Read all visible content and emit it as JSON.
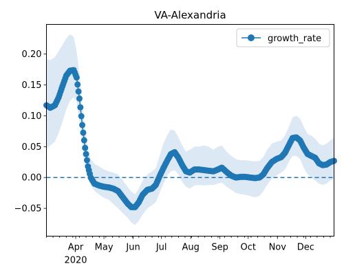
{
  "chart_data": {
    "type": "line",
    "title": "VA-Alexandria",
    "xlabel": "",
    "ylabel": "",
    "x_start": "2020-03-01",
    "x_end": "2020-12-31",
    "xlim": [
      "2020-03-01",
      "2020-12-31"
    ],
    "ylim": [
      -0.095,
      0.248
    ],
    "grid": false,
    "legend_placement": "top-right",
    "month_ticks": [
      {
        "date": "2020-04-01",
        "label": "Apr"
      },
      {
        "date": "2020-05-01",
        "label": "May"
      },
      {
        "date": "2020-06-01",
        "label": "Jun"
      },
      {
        "date": "2020-07-01",
        "label": "Jul"
      },
      {
        "date": "2020-08-01",
        "label": "Aug"
      },
      {
        "date": "2020-09-01",
        "label": "Sep"
      },
      {
        "date": "2020-10-01",
        "label": "Oct"
      },
      {
        "date": "2020-11-01",
        "label": "Nov"
      },
      {
        "date": "2020-12-01",
        "label": "Dec"
      }
    ],
    "year_label": {
      "date": "2020-04-01",
      "label": "2020"
    },
    "y_ticks": [
      {
        "value": -0.05,
        "label": "−0.05"
      },
      {
        "value": 0.0,
        "label": "0.00"
      },
      {
        "value": 0.05,
        "label": "0.05"
      },
      {
        "value": 0.1,
        "label": "0.10"
      },
      {
        "value": 0.15,
        "label": "0.15"
      },
      {
        "value": 0.2,
        "label": "0.20"
      }
    ],
    "reference_line": {
      "value": 0.0,
      "style": "dashed"
    },
    "series": [
      {
        "name": "growth_rate",
        "color": "#1f77b4",
        "band_color": "#dce9f5",
        "points": [
          {
            "date": "2020-03-01",
            "y": 0.117,
            "lo": 0.047,
            "hi": 0.192
          },
          {
            "date": "2020-03-05",
            "y": 0.113,
            "lo": 0.052,
            "hi": 0.19
          },
          {
            "date": "2020-03-10",
            "y": 0.117,
            "lo": 0.058,
            "hi": 0.195
          },
          {
            "date": "2020-03-14",
            "y": 0.13,
            "lo": 0.072,
            "hi": 0.205
          },
          {
            "date": "2020-03-18",
            "y": 0.148,
            "lo": 0.09,
            "hi": 0.215
          },
          {
            "date": "2020-03-22",
            "y": 0.165,
            "lo": 0.11,
            "hi": 0.225
          },
          {
            "date": "2020-03-26",
            "y": 0.173,
            "lo": 0.124,
            "hi": 0.232
          },
          {
            "date": "2020-03-30",
            "y": 0.174,
            "lo": 0.13,
            "hi": 0.228
          },
          {
            "date": "2020-04-02",
            "y": 0.162,
            "lo": 0.123,
            "hi": 0.205
          },
          {
            "date": "2020-04-05",
            "y": 0.128,
            "lo": 0.092,
            "hi": 0.168
          },
          {
            "date": "2020-04-08",
            "y": 0.085,
            "lo": 0.058,
            "hi": 0.118
          },
          {
            "date": "2020-04-11",
            "y": 0.048,
            "lo": 0.025,
            "hi": 0.078
          },
          {
            "date": "2020-04-14",
            "y": 0.018,
            "lo": 0.0,
            "hi": 0.045
          },
          {
            "date": "2020-04-17",
            "y": 0.0,
            "lo": -0.013,
            "hi": 0.03
          },
          {
            "date": "2020-04-21",
            "y": -0.01,
            "lo": -0.022,
            "hi": 0.022
          },
          {
            "date": "2020-04-26",
            "y": -0.013,
            "lo": -0.028,
            "hi": 0.018
          },
          {
            "date": "2020-05-01",
            "y": -0.015,
            "lo": -0.033,
            "hi": 0.013
          },
          {
            "date": "2020-05-06",
            "y": -0.016,
            "lo": -0.036,
            "hi": 0.01
          },
          {
            "date": "2020-05-11",
            "y": -0.018,
            "lo": -0.043,
            "hi": 0.008
          },
          {
            "date": "2020-05-16",
            "y": -0.022,
            "lo": -0.05,
            "hi": 0.005
          },
          {
            "date": "2020-05-21",
            "y": -0.032,
            "lo": -0.058,
            "hi": -0.005
          },
          {
            "date": "2020-05-26",
            "y": -0.042,
            "lo": -0.065,
            "hi": -0.015
          },
          {
            "date": "2020-05-30",
            "y": -0.048,
            "lo": -0.073,
            "hi": -0.023
          },
          {
            "date": "2020-06-03",
            "y": -0.048,
            "lo": -0.077,
            "hi": -0.027
          },
          {
            "date": "2020-06-07",
            "y": -0.04,
            "lo": -0.07,
            "hi": -0.018
          },
          {
            "date": "2020-06-11",
            "y": -0.028,
            "lo": -0.06,
            "hi": -0.005
          },
          {
            "date": "2020-06-16",
            "y": -0.02,
            "lo": -0.05,
            "hi": 0.005
          },
          {
            "date": "2020-06-21",
            "y": -0.018,
            "lo": -0.045,
            "hi": 0.01
          },
          {
            "date": "2020-06-25",
            "y": -0.012,
            "lo": -0.04,
            "hi": 0.015
          },
          {
            "date": "2020-06-29",
            "y": 0.002,
            "lo": -0.025,
            "hi": 0.035
          },
          {
            "date": "2020-07-03",
            "y": 0.015,
            "lo": -0.01,
            "hi": 0.055
          },
          {
            "date": "2020-07-07",
            "y": 0.027,
            "lo": 0.003,
            "hi": 0.068
          },
          {
            "date": "2020-07-11",
            "y": 0.038,
            "lo": 0.01,
            "hi": 0.078
          },
          {
            "date": "2020-07-15",
            "y": 0.041,
            "lo": 0.012,
            "hi": 0.076
          },
          {
            "date": "2020-07-19",
            "y": 0.032,
            "lo": 0.005,
            "hi": 0.065
          },
          {
            "date": "2020-07-23",
            "y": 0.02,
            "lo": -0.007,
            "hi": 0.052
          },
          {
            "date": "2020-07-27",
            "y": 0.01,
            "lo": -0.015,
            "hi": 0.042
          },
          {
            "date": "2020-07-31",
            "y": 0.008,
            "lo": -0.018,
            "hi": 0.045
          },
          {
            "date": "2020-08-05",
            "y": 0.013,
            "lo": -0.013,
            "hi": 0.05
          },
          {
            "date": "2020-08-10",
            "y": 0.013,
            "lo": -0.012,
            "hi": 0.05
          },
          {
            "date": "2020-08-15",
            "y": 0.012,
            "lo": -0.013,
            "hi": 0.052
          },
          {
            "date": "2020-08-20",
            "y": 0.011,
            "lo": -0.012,
            "hi": 0.05
          },
          {
            "date": "2020-08-25",
            "y": 0.01,
            "lo": -0.012,
            "hi": 0.045
          },
          {
            "date": "2020-08-30",
            "y": 0.013,
            "lo": -0.01,
            "hi": 0.05
          },
          {
            "date": "2020-09-03",
            "y": 0.016,
            "lo": -0.008,
            "hi": 0.052
          },
          {
            "date": "2020-09-08",
            "y": 0.009,
            "lo": -0.015,
            "hi": 0.042
          },
          {
            "date": "2020-09-13",
            "y": 0.003,
            "lo": -0.02,
            "hi": 0.035
          },
          {
            "date": "2020-09-18",
            "y": 0.0,
            "lo": -0.025,
            "hi": 0.03
          },
          {
            "date": "2020-09-23",
            "y": 0.001,
            "lo": -0.027,
            "hi": 0.028
          },
          {
            "date": "2020-09-28",
            "y": 0.001,
            "lo": -0.028,
            "hi": 0.028
          },
          {
            "date": "2020-10-03",
            "y": 0.0,
            "lo": -0.03,
            "hi": 0.027
          },
          {
            "date": "2020-10-08",
            "y": -0.001,
            "lo": -0.032,
            "hi": 0.026
          },
          {
            "date": "2020-10-13",
            "y": 0.0,
            "lo": -0.03,
            "hi": 0.027
          },
          {
            "date": "2020-10-17",
            "y": 0.005,
            "lo": -0.022,
            "hi": 0.033
          },
          {
            "date": "2020-10-21",
            "y": 0.015,
            "lo": -0.012,
            "hi": 0.045
          },
          {
            "date": "2020-10-26",
            "y": 0.025,
            "lo": -0.002,
            "hi": 0.055
          },
          {
            "date": "2020-10-31",
            "y": 0.03,
            "lo": 0.003,
            "hi": 0.058
          },
          {
            "date": "2020-11-05",
            "y": 0.033,
            "lo": 0.008,
            "hi": 0.06
          },
          {
            "date": "2020-11-09",
            "y": 0.04,
            "lo": 0.013,
            "hi": 0.068
          },
          {
            "date": "2020-11-13",
            "y": 0.052,
            "lo": 0.025,
            "hi": 0.082
          },
          {
            "date": "2020-11-17",
            "y": 0.064,
            "lo": 0.035,
            "hi": 0.097
          },
          {
            "date": "2020-11-21",
            "y": 0.065,
            "lo": 0.035,
            "hi": 0.1
          },
          {
            "date": "2020-11-25",
            "y": 0.06,
            "lo": 0.03,
            "hi": 0.095
          },
          {
            "date": "2020-11-29",
            "y": 0.048,
            "lo": 0.015,
            "hi": 0.082
          },
          {
            "date": "2020-12-03",
            "y": 0.038,
            "lo": 0.005,
            "hi": 0.07
          },
          {
            "date": "2020-12-07",
            "y": 0.035,
            "lo": 0.0,
            "hi": 0.068
          },
          {
            "date": "2020-12-11",
            "y": 0.032,
            "lo": -0.005,
            "hi": 0.063
          },
          {
            "date": "2020-12-15",
            "y": 0.023,
            "lo": -0.01,
            "hi": 0.055
          },
          {
            "date": "2020-12-19",
            "y": 0.02,
            "lo": -0.012,
            "hi": 0.052
          },
          {
            "date": "2020-12-23",
            "y": 0.021,
            "lo": -0.01,
            "hi": 0.055
          },
          {
            "date": "2020-12-27",
            "y": 0.025,
            "lo": -0.005,
            "hi": 0.06
          },
          {
            "date": "2020-12-31",
            "y": 0.027,
            "lo": -0.003,
            "hi": 0.065
          }
        ]
      }
    ]
  }
}
